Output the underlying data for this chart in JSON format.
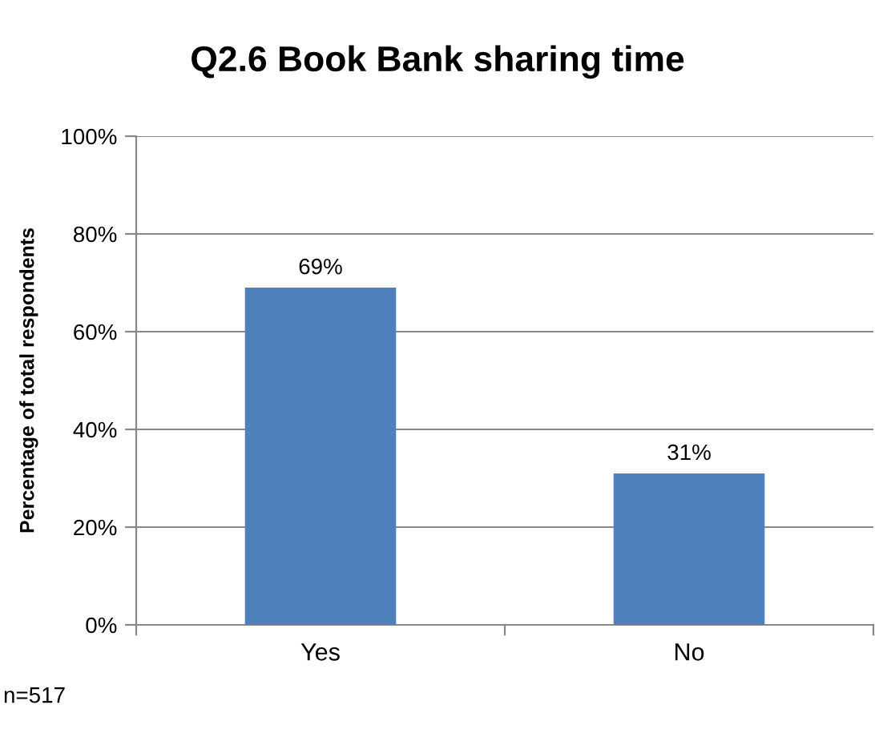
{
  "chart_data": {
    "type": "bar",
    "title": "Q2.6 Book Bank sharing time",
    "ylabel": "Percentage of total respondents",
    "categories": [
      "Yes",
      "No"
    ],
    "series": [
      {
        "color": "#4f81bd",
        "values": [
          69,
          31
        ]
      }
    ],
    "value_labels": [
      "69%",
      "31%"
    ],
    "ylim": [
      0,
      100
    ],
    "yticks": [
      {
        "value": 0,
        "label": "0%"
      },
      {
        "value": 20,
        "label": "20%"
      },
      {
        "value": 40,
        "label": "40%"
      },
      {
        "value": 60,
        "label": "60%"
      },
      {
        "value": 80,
        "label": "80%"
      },
      {
        "value": 100,
        "label": "100%"
      }
    ],
    "grid": "y",
    "annotations": [
      "n=517"
    ]
  }
}
